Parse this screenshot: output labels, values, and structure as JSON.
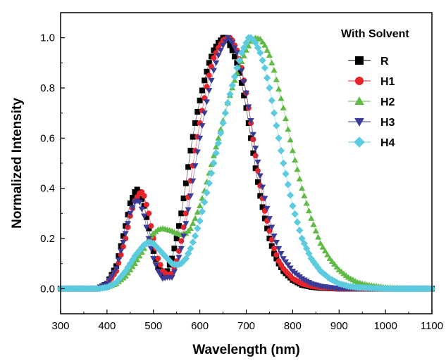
{
  "chart_data": {
    "type": "scatter",
    "title": "",
    "xlabel": "Wavelength (nm)",
    "ylabel": "Normalized Intensity",
    "xlim": [
      300,
      1100
    ],
    "ylim": [
      -0.1,
      1.1
    ],
    "xticks": [
      300,
      400,
      500,
      600,
      700,
      800,
      900,
      1000,
      1100
    ],
    "yticks": [
      0.0,
      0.2,
      0.4,
      0.6,
      0.8,
      1.0
    ],
    "ytick_labels": [
      "0.0",
      "0.2",
      "0.4",
      "0.6",
      "0.8",
      "1.0"
    ],
    "grid": false,
    "legend": {
      "title": "With Solvent",
      "position": "top-right"
    },
    "series": [
      {
        "name": "R",
        "color": "#000000",
        "marker": "square",
        "x": [
          300,
          380,
          400,
          420,
          440,
          450,
          460,
          465,
          470,
          480,
          490,
          500,
          510,
          520,
          530,
          540,
          550,
          560,
          570,
          580,
          590,
          600,
          610,
          620,
          630,
          640,
          650,
          655,
          660,
          670,
          680,
          690,
          700,
          710,
          720,
          730,
          740,
          750,
          760,
          770,
          780,
          800,
          820,
          840,
          860,
          900,
          1000,
          1100
        ],
        "y": [
          0.0,
          0.0,
          0.02,
          0.09,
          0.25,
          0.34,
          0.385,
          0.395,
          0.385,
          0.33,
          0.24,
          0.15,
          0.085,
          0.06,
          0.07,
          0.12,
          0.2,
          0.3,
          0.42,
          0.55,
          0.66,
          0.75,
          0.83,
          0.9,
          0.95,
          0.98,
          1.0,
          1.0,
          0.99,
          0.95,
          0.9,
          0.82,
          0.72,
          0.6,
          0.48,
          0.37,
          0.28,
          0.2,
          0.14,
          0.1,
          0.07,
          0.035,
          0.015,
          0.007,
          0.003,
          0.0,
          0.0,
          0.0
        ]
      },
      {
        "name": "H1",
        "color": "#e8232a",
        "marker": "circle",
        "x": [
          300,
          380,
          400,
          420,
          440,
          450,
          460,
          470,
          475,
          480,
          490,
          500,
          510,
          520,
          530,
          540,
          550,
          560,
          570,
          580,
          590,
          600,
          610,
          620,
          630,
          640,
          650,
          660,
          665,
          670,
          680,
          690,
          700,
          710,
          720,
          730,
          740,
          750,
          760,
          770,
          780,
          800,
          820,
          840,
          860,
          900,
          1000,
          1100
        ],
        "y": [
          0.0,
          0.0,
          0.015,
          0.07,
          0.2,
          0.29,
          0.35,
          0.38,
          0.385,
          0.37,
          0.3,
          0.2,
          0.12,
          0.07,
          0.055,
          0.06,
          0.11,
          0.19,
          0.3,
          0.43,
          0.55,
          0.66,
          0.76,
          0.85,
          0.92,
          0.96,
          0.99,
          1.0,
          1.0,
          0.99,
          0.95,
          0.88,
          0.78,
          0.66,
          0.53,
          0.41,
          0.31,
          0.23,
          0.16,
          0.11,
          0.08,
          0.04,
          0.02,
          0.01,
          0.005,
          0.0,
          0.0,
          0.0
        ]
      },
      {
        "name": "H2",
        "color": "#5fbb46",
        "marker": "triangle-up",
        "x": [
          300,
          380,
          400,
          420,
          440,
          460,
          480,
          490,
          500,
          510,
          520,
          530,
          540,
          550,
          560,
          570,
          580,
          590,
          600,
          610,
          620,
          640,
          660,
          680,
          700,
          710,
          720,
          730,
          740,
          750,
          760,
          780,
          800,
          820,
          840,
          860,
          880,
          900,
          920,
          940,
          960,
          1000,
          1050,
          1100
        ],
        "y": [
          0.0,
          0.0,
          0.005,
          0.02,
          0.05,
          0.1,
          0.16,
          0.2,
          0.22,
          0.235,
          0.24,
          0.235,
          0.23,
          0.22,
          0.215,
          0.22,
          0.24,
          0.28,
          0.33,
          0.39,
          0.46,
          0.6,
          0.74,
          0.86,
          0.95,
          0.985,
          1.0,
          0.995,
          0.97,
          0.93,
          0.87,
          0.72,
          0.55,
          0.4,
          0.28,
          0.18,
          0.12,
          0.075,
          0.045,
          0.025,
          0.015,
          0.005,
          0.001,
          0.0
        ]
      },
      {
        "name": "H3",
        "color": "#3a3b97",
        "marker": "triangle-down",
        "x": [
          300,
          380,
          400,
          420,
          440,
          450,
          460,
          465,
          470,
          480,
          490,
          500,
          510,
          520,
          530,
          540,
          550,
          560,
          570,
          580,
          590,
          600,
          610,
          620,
          630,
          640,
          650,
          660,
          670,
          680,
          690,
          700,
          710,
          720,
          730,
          740,
          750,
          760,
          770,
          780,
          800,
          820,
          840,
          860,
          880,
          900,
          1000,
          1100
        ],
        "y": [
          0.0,
          0.0,
          0.02,
          0.08,
          0.22,
          0.3,
          0.345,
          0.35,
          0.345,
          0.29,
          0.2,
          0.12,
          0.07,
          0.04,
          0.045,
          0.045,
          0.09,
          0.16,
          0.26,
          0.37,
          0.49,
          0.6,
          0.7,
          0.79,
          0.87,
          0.93,
          0.97,
          1.0,
          0.98,
          0.94,
          0.87,
          0.78,
          0.67,
          0.56,
          0.45,
          0.36,
          0.28,
          0.21,
          0.16,
          0.12,
          0.07,
          0.04,
          0.02,
          0.01,
          0.005,
          0.0,
          0.0,
          0.0
        ]
      },
      {
        "name": "H4",
        "color": "#5ccbe0",
        "marker": "diamond",
        "x": [
          300,
          380,
          400,
          420,
          440,
          460,
          480,
          490,
          500,
          510,
          520,
          530,
          540,
          550,
          560,
          570,
          580,
          590,
          600,
          620,
          640,
          660,
          680,
          690,
          700,
          705,
          710,
          720,
          730,
          740,
          750,
          760,
          770,
          780,
          800,
          820,
          840,
          860,
          880,
          900,
          920,
          940,
          1000,
          1100
        ],
        "y": [
          0.0,
          0.0,
          0.005,
          0.025,
          0.07,
          0.13,
          0.175,
          0.185,
          0.18,
          0.16,
          0.14,
          0.12,
          0.1,
          0.095,
          0.1,
          0.12,
          0.16,
          0.21,
          0.27,
          0.42,
          0.58,
          0.74,
          0.88,
          0.94,
          0.98,
          1.0,
          1.0,
          0.98,
          0.94,
          0.88,
          0.8,
          0.7,
          0.6,
          0.5,
          0.33,
          0.2,
          0.12,
          0.07,
          0.04,
          0.02,
          0.01,
          0.005,
          0.0,
          0.0
        ]
      }
    ]
  }
}
